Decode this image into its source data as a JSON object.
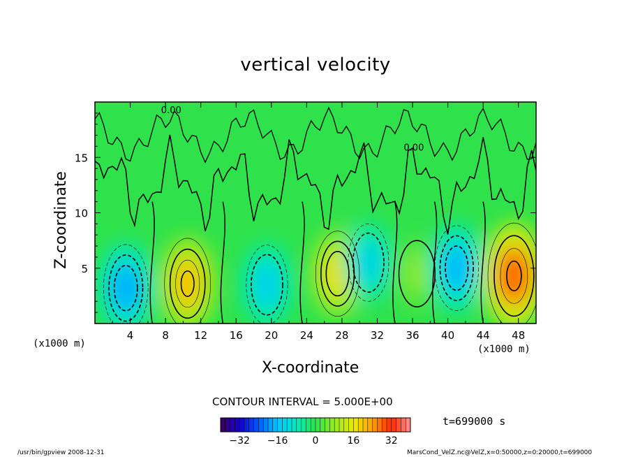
{
  "chart_data": {
    "type": "heatmap",
    "title": "vertical velocity",
    "xlabel": "X-coordinate",
    "ylabel": "Z-coordinate",
    "x_unit_label": "(x1000 m)",
    "xlim": [
      0,
      50
    ],
    "ylim": [
      0,
      20
    ],
    "x_ticks": [
      4,
      8,
      12,
      16,
      20,
      24,
      28,
      32,
      36,
      40,
      44,
      48
    ],
    "y_ticks": [
      5,
      10,
      15
    ],
    "contour_labels": [
      "0.00",
      "0.00"
    ],
    "contour_interval_text": "CONTOUR INTERVAL = 5.000E+00",
    "colorbar": {
      "range": [
        -40,
        40
      ],
      "ticks": [
        -32,
        -16,
        0,
        16,
        32
      ]
    },
    "cells": [
      {
        "x": 3.5,
        "z": 3.2,
        "value": -18
      },
      {
        "x": 10.5,
        "z": 3.6,
        "value": 20
      },
      {
        "x": 19.5,
        "z": 3.5,
        "value": -14
      },
      {
        "x": 27.5,
        "z": 4.5,
        "value": 17
      },
      {
        "x": 31.0,
        "z": 5.5,
        "value": -13
      },
      {
        "x": 36.5,
        "z": 4.5,
        "value": 7
      },
      {
        "x": 41.0,
        "z": 5.0,
        "value": -17
      },
      {
        "x": 47.5,
        "z": 4.3,
        "value": 28
      }
    ]
  },
  "time_label": "t=699000 s",
  "footer_left": "/usr/bin/gpview   2008-12-31",
  "footer_right": "MarsCond_VelZ.nc@VelZ,x=0:50000,z=0:20000,t=699000",
  "colors": {
    "background_field": "#2ee64a",
    "plot_frame": "#000000"
  }
}
